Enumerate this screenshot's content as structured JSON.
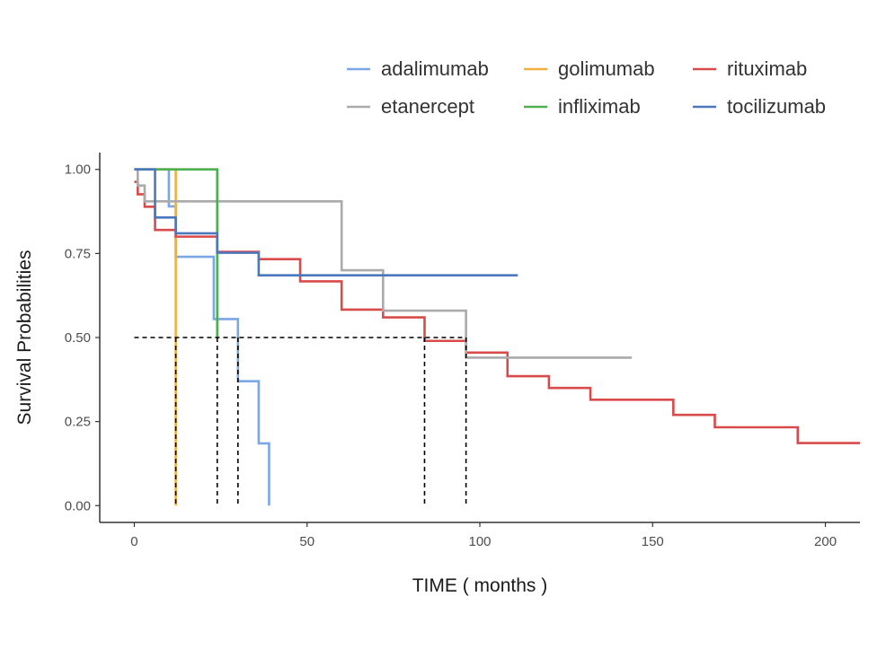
{
  "chart_data": {
    "type": "line",
    "subtype": "step",
    "xlabel": "TIME ( months )",
    "ylabel": "Survival Probabilities",
    "xlim": [
      -10,
      210
    ],
    "ylim": [
      -0.05,
      1.05
    ],
    "xticks": [
      0,
      50,
      100,
      150,
      200
    ],
    "yticks": [
      0.0,
      0.25,
      0.5,
      0.75,
      1.0
    ],
    "xtick_labels": [
      "0",
      "50",
      "100",
      "150",
      "200"
    ],
    "ytick_labels": [
      "0.00",
      "0.25",
      "0.50",
      "0.75",
      "1.00"
    ],
    "grid": false,
    "legend_position": "top",
    "series": [
      {
        "name": "adalimumab",
        "color": "#7ba7e6",
        "x": [
          0,
          10,
          12,
          23,
          30,
          36,
          39
        ],
        "y": [
          1.0,
          0.89,
          0.74,
          0.555,
          0.37,
          0.185,
          0.0
        ]
      },
      {
        "name": "golimumab",
        "color": "#f0b041",
        "x": [
          0,
          12
        ],
        "y": [
          1.0,
          0.0
        ]
      },
      {
        "name": "rituximab",
        "color": "#d94b4b",
        "x": [
          0,
          1,
          3,
          6,
          12,
          24,
          36,
          48,
          60,
          72,
          84,
          96,
          108,
          120,
          132,
          156,
          168,
          192,
          210
        ],
        "y": [
          0.963,
          0.926,
          0.889,
          0.82,
          0.8,
          0.755,
          0.733,
          0.667,
          0.583,
          0.56,
          0.49,
          0.455,
          0.385,
          0.35,
          0.315,
          0.27,
          0.233,
          0.186,
          0.186
        ]
      },
      {
        "name": "etanercept",
        "color": "#aaaaaa",
        "x": [
          0,
          1,
          3,
          60,
          72,
          96,
          144
        ],
        "y": [
          1.0,
          0.952,
          0.905,
          0.7,
          0.58,
          0.44,
          0.44
        ]
      },
      {
        "name": "infliximab",
        "color": "#4caf50",
        "x": [
          0,
          24
        ],
        "y": [
          1.0,
          0.5
        ]
      },
      {
        "name": "tocilizumab",
        "color": "#4b77bd",
        "x": [
          0,
          6,
          12,
          24,
          36,
          111
        ],
        "y": [
          1.0,
          0.857,
          0.81,
          0.752,
          0.685,
          0.685
        ]
      }
    ],
    "median_lines": {
      "y": 0.5,
      "x_start": 0,
      "x_end": 96,
      "x_values": [
        12,
        24,
        30,
        84,
        96
      ],
      "color": "#000000",
      "style": "dashed"
    }
  }
}
